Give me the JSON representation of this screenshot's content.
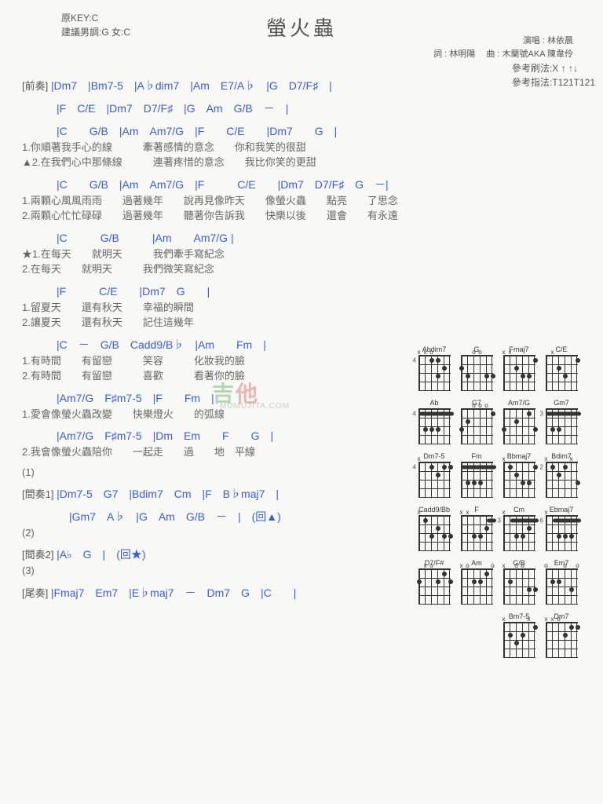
{
  "header": {
    "original_key": "原KEY:C",
    "suggested_key": "建議男調:G 女:C",
    "title": "螢火蟲",
    "singer_label": "演唱 :",
    "singer": "林依晨",
    "lyric_label": "詞 :",
    "lyricist": "林明陽",
    "music_label": "曲 :",
    "composer": "木蘭號AKA 陳韋伶",
    "strum_hint": "參考刷法:X ↑ ↑↓",
    "finger_hint": "參考指法:T121T121"
  },
  "sections": {
    "intro_label": "[前奏]",
    "intro_line1_chords": " |Dm7　|Bm7-5　|A♭dim7　|Am　E7/A♭　|G　D7/F♯　|",
    "intro_line2_chords": "|F　C/E　|Dm7　D7/F♯　|G　Am　G/B　－　|",
    "verse1_chords_a": "|C　　G/B　|Am　Am7/G　|F　　C/E　　|Dm7　　G　|",
    "verse1_lyric1": "1.你順著我手心的線　　　牽著感情的意念　　你和我笑的很甜",
    "verse1_lyric2": "▲2.在我們心中那條線　　　連著疼惜的意念　　我比你笑的更甜",
    "verse1_chords_b": "|C　　G/B　|Am　Am7/G　|F　　　C/E　　|Dm7　D7/F♯　G　－|",
    "verse2_lyric1": "1.兩顆心風風雨雨　　過著幾年　　說再見像昨天　　像螢火蟲　　點亮　　了思念",
    "verse2_lyric2": "2.兩顆心忙忙碌碌　　過著幾年　　聽著你告訴我　　快樂以後　　還會　　有永遠",
    "chorus1_chords_a": "|C　　　G/B　　　|Am　　Am7/G |",
    "chorus1_lyric1": "★1.在每天　　就明天　　　我們牽手寫紀念",
    "chorus1_lyric2": "2.在每天　　就明天　　　我們微笑寫紀念",
    "chorus1_chords_b": "|F　　　C/E　　|Dm7　G　　|",
    "chorus2_lyric1": "1.留夏天　　還有秋天　　幸福的瞬間",
    "chorus2_lyric2": "2.讓夏天　　還有秋天　　記住這幾年",
    "chorus2_chords": "|C　－　G/B　Cadd9/B♭　|Am　　Fm　|",
    "chorus3_lyric1": "1.有時間　　有留戀　　　笑容　　　化妝我的臉",
    "chorus3_lyric2": "2.有時間　　有留戀　　　喜歡　　　看著你的臉",
    "chorus3_chords_a": "|Am7/G　F♯m7-5　|F　　Fm　|",
    "chorus4_lyric1": "1.愛會像螢火蟲改變　　快樂燈火　　的弧線",
    "chorus3_chords_b": "|Am7/G　F♯m7-5　|Dm　Em　　F　　G　|",
    "chorus4_lyric2": "2.我會像螢火蟲陪你　　一起走　　過　　地　平線",
    "marker1": "(1)",
    "inter1_label": "[間奏1]",
    "inter1_chords_a": " |Dm7-5　G7　|Bdim7　Cm　|F　B♭maj7　|",
    "inter1_chords_b": "|Gm7　A♭　|G　Am　G/B　－　|　(回▲)",
    "marker2": "(2)",
    "inter2_label": "[間奏2]",
    "inter2_chords": " |A♭　G　|　(回★)",
    "marker3": "(3)",
    "outro_label": "[尾奏]",
    "outro_chords": " |Fmaj7　Em7　|E♭maj7　－　Dm7　G　|C　　|"
  },
  "watermark": {
    "text1": "吉",
    "text2": "他",
    "sub": "MUMUJITA.COM"
  },
  "chord_colors": {
    "chord": "#3b5bdb",
    "text": "#666666"
  },
  "chord_diagrams": [
    {
      "name": "Abdim7",
      "marks": [
        "x",
        "x",
        "o",
        "",
        "",
        ""
      ],
      "dots": [
        [
          3,
          1
        ],
        [
          4,
          1
        ],
        [
          5,
          2
        ],
        [
          4,
          3
        ]
      ],
      "fret": 4
    },
    {
      "name": "G",
      "marks": [
        "",
        "",
        "o",
        "o",
        "",
        ""
      ],
      "dots": [
        [
          1,
          2
        ],
        [
          2,
          3
        ],
        [
          5,
          3
        ],
        [
          6,
          3
        ]
      ]
    },
    {
      "name": "Fmaj7",
      "marks": [
        "x",
        "x",
        "",
        "",
        "",
        ""
      ],
      "dots": [
        [
          3,
          2
        ],
        [
          4,
          3
        ],
        [
          5,
          3
        ],
        [
          6,
          1
        ]
      ]
    },
    {
      "name": "C/E",
      "marks": [
        "",
        "x",
        "",
        "",
        "",
        ""
      ],
      "dots": [
        [
          3,
          2
        ],
        [
          4,
          3
        ],
        [
          6,
          1
        ]
      ],
      "o": [
        1,
        5
      ]
    },
    {
      "name": "Ab",
      "marks": [],
      "barre": {
        "fret": 1,
        "from": 1,
        "to": 6
      },
      "dots": [
        [
          2,
          3
        ],
        [
          3,
          3
        ],
        [
          4,
          3
        ]
      ],
      "fret": 4
    },
    {
      "name": "G7",
      "marks": [
        "",
        "",
        "o",
        "o",
        "o",
        ""
      ],
      "dots": [
        [
          1,
          3
        ],
        [
          2,
          2
        ],
        [
          6,
          1
        ]
      ]
    },
    {
      "name": "Am7/G",
      "marks": [
        "",
        "",
        "",
        "",
        "",
        ""
      ],
      "dots": [
        [
          1,
          3
        ],
        [
          3,
          2
        ],
        [
          5,
          1
        ],
        [
          6,
          3
        ]
      ]
    },
    {
      "name": "Gm7",
      "marks": [],
      "barre": {
        "fret": 1,
        "from": 1,
        "to": 6
      },
      "dots": [
        [
          2,
          3
        ],
        [
          3,
          3
        ]
      ],
      "fret": 3
    },
    {
      "name": "Dm7-5",
      "marks": [
        "x",
        "",
        "",
        "",
        "",
        ""
      ],
      "dots": [
        [
          3,
          1
        ],
        [
          5,
          1
        ],
        [
          6,
          1
        ],
        [
          4,
          2
        ]
      ],
      "fret": 4
    },
    {
      "name": "Fm",
      "marks": [],
      "barre": {
        "fret": 1,
        "from": 1,
        "to": 6
      },
      "dots": [
        [
          2,
          3
        ],
        [
          3,
          3
        ],
        [
          4,
          3
        ]
      ]
    },
    {
      "name": "Bbmaj7",
      "marks": [
        "x",
        "",
        "",
        "",
        "",
        ""
      ],
      "dots": [
        [
          2,
          1
        ],
        [
          4,
          3
        ],
        [
          5,
          3
        ],
        [
          6,
          1
        ],
        [
          3,
          2
        ]
      ]
    },
    {
      "name": "Bdim7",
      "marks": [
        "x",
        "",
        "",
        "",
        "x",
        ""
      ],
      "dots": [
        [
          2,
          1
        ],
        [
          3,
          2
        ],
        [
          4,
          1
        ],
        [
          6,
          3
        ]
      ],
      "fret": 2
    },
    {
      "name": "Cadd9/Bb",
      "marks": [
        "x",
        "",
        "",
        "",
        "",
        ""
      ],
      "dots": [
        [
          2,
          1
        ],
        [
          3,
          3
        ],
        [
          4,
          2
        ],
        [
          5,
          3
        ],
        [
          6,
          3
        ]
      ]
    },
    {
      "name": "F",
      "marks": [
        "x",
        "x",
        "",
        "",
        "",
        ""
      ],
      "barre": {
        "fret": 1,
        "from": 5,
        "to": 6
      },
      "dots": [
        [
          3,
          3
        ],
        [
          4,
          3
        ],
        [
          5,
          2
        ]
      ]
    },
    {
      "name": "Cm",
      "marks": [
        "x",
        "",
        "",
        "",
        "",
        ""
      ],
      "barre": {
        "fret": 1,
        "from": 2,
        "to": 6
      },
      "dots": [
        [
          3,
          3
        ],
        [
          4,
          3
        ],
        [
          5,
          2
        ]
      ],
      "fret": 3
    },
    {
      "name": "Ebmaj7",
      "marks": [
        "x",
        "",
        "",
        "",
        "",
        ""
      ],
      "barre": {
        "fret": 1,
        "from": 2,
        "to": 6
      },
      "dots": [
        [
          3,
          3
        ],
        [
          4,
          3
        ],
        [
          5,
          3
        ]
      ],
      "fret": 6
    },
    {
      "name": "D7/F#",
      "marks": [
        "",
        "x",
        "o",
        "",
        "",
        ""
      ],
      "dots": [
        [
          1,
          2
        ],
        [
          4,
          2
        ],
        [
          5,
          1
        ],
        [
          6,
          2
        ]
      ]
    },
    {
      "name": "Am",
      "marks": [
        "x",
        "o",
        "",
        "",
        "",
        "o"
      ],
      "dots": [
        [
          3,
          2
        ],
        [
          4,
          2
        ],
        [
          5,
          1
        ]
      ]
    },
    {
      "name": "G/B",
      "marks": [
        "x",
        "",
        "o",
        "o",
        "",
        ""
      ],
      "dots": [
        [
          2,
          2
        ],
        [
          5,
          3
        ],
        [
          6,
          3
        ]
      ]
    },
    {
      "name": "Em7",
      "marks": [
        "o",
        "",
        "",
        "o",
        "",
        "o"
      ],
      "dots": [
        [
          2,
          2
        ],
        [
          3,
          2
        ],
        [
          5,
          3
        ]
      ]
    },
    {
      "name": "Bm7-5",
      "marks": [
        "x",
        "",
        "",
        "",
        "x",
        ""
      ],
      "dots": [
        [
          2,
          2
        ],
        [
          3,
          3
        ],
        [
          4,
          2
        ],
        [
          6,
          1
        ]
      ]
    },
    {
      "name": "Dm7",
      "marks": [
        "x",
        "x",
        "o",
        "",
        "",
        ""
      ],
      "dots": [
        [
          4,
          2
        ],
        [
          5,
          1
        ],
        [
          6,
          1
        ]
      ]
    }
  ]
}
